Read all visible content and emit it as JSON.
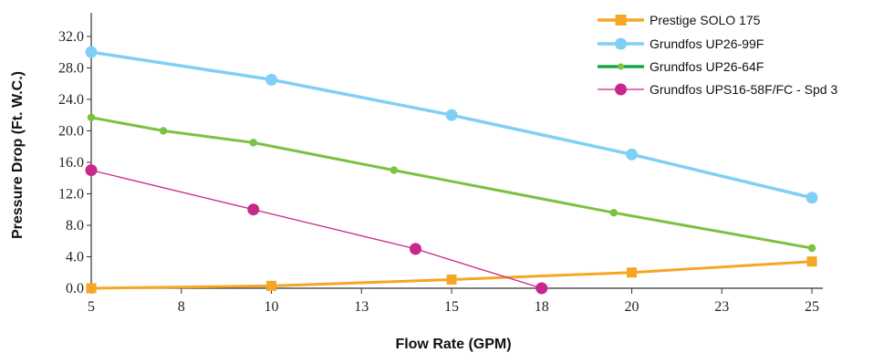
{
  "chart_data": {
    "type": "line",
    "title": "",
    "xlabel": "Flow Rate (GPM)",
    "ylabel": "Pressure Drop (Ft. W.C.)",
    "xlim": [
      5,
      25
    ],
    "ylim": [
      0,
      35
    ],
    "x_ticks": [
      "5",
      "8",
      "10",
      "13",
      "15",
      "18",
      "20",
      "23",
      "25"
    ],
    "y_ticks": [
      "0.0",
      "4.0",
      "8.0",
      "12.0",
      "16.0",
      "20.0",
      "24.0",
      "28.0",
      "32.0"
    ],
    "grid": false,
    "legend_position": "top-right",
    "series": [
      {
        "name": "Prestige SOLO 175",
        "color": "#f5a623",
        "marker": "square",
        "x": [
          5,
          10,
          15,
          20,
          25
        ],
        "y": [
          0.0,
          0.3,
          1.1,
          2.0,
          3.4
        ]
      },
      {
        "name": "Grundfos UP26-99F",
        "color": "#80d0f5",
        "marker": "circle",
        "x": [
          5,
          10,
          15,
          20,
          25
        ],
        "y": [
          30.0,
          26.5,
          22.0,
          17.0,
          11.5
        ]
      },
      {
        "name": "Grundfos UP26-64F",
        "color": "#7cc142",
        "marker": "dot",
        "legend_color": "#1aa34a",
        "x": [
          5,
          7,
          9.5,
          13.4,
          19.5,
          25
        ],
        "y": [
          21.7,
          20.0,
          18.5,
          15.0,
          9.6,
          5.1
        ]
      },
      {
        "name": "Grundfos UPS16-58F/FC - Spd 3",
        "color": "#c8288c",
        "marker": "circle",
        "x": [
          5,
          9.5,
          14,
          17.5
        ],
        "y": [
          15.0,
          10.0,
          5.0,
          0.0
        ]
      }
    ]
  }
}
